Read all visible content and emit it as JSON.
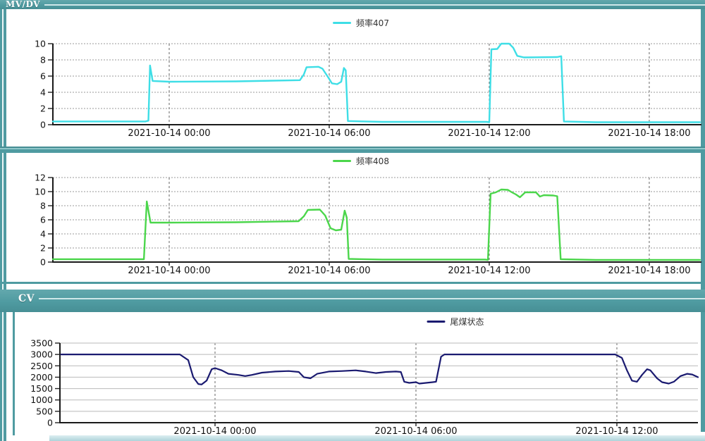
{
  "page": {
    "teal": "#4f9ba1",
    "bottom_strip_color": "#aed3d9"
  },
  "sections": {
    "mvdv": {
      "label": "MV/DV"
    },
    "cv": {
      "label": "CV"
    }
  },
  "chart_data": [
    {
      "type": "line",
      "title": "频率407",
      "color": "#3edee6",
      "line_width": 2.4,
      "legend_position": "top-center",
      "grid": true,
      "ylim": [
        0,
        10
      ],
      "yticks": [
        0,
        2,
        4,
        6,
        8,
        10
      ],
      "x_unit": "hours relative to 2021-10-14 00:00",
      "x_range": [
        -4.4,
        19.9
      ],
      "x_ticks": [
        {
          "h": 0,
          "label": "2021-10-14 00:00"
        },
        {
          "h": 6,
          "label": "2021-10-14 06:00"
        },
        {
          "h": 12,
          "label": "2021-10-14 12:00"
        },
        {
          "h": 18,
          "label": "2021-10-14 18:00"
        }
      ],
      "points": [
        [
          -4.4,
          0.4
        ],
        [
          -0.9,
          0.4
        ],
        [
          -0.78,
          0.5
        ],
        [
          -0.72,
          7.3
        ],
        [
          -0.62,
          5.4
        ],
        [
          0,
          5.3
        ],
        [
          2.5,
          5.35
        ],
        [
          4.9,
          5.5
        ],
        [
          5.05,
          6.2
        ],
        [
          5.15,
          7.1
        ],
        [
          5.6,
          7.15
        ],
        [
          5.75,
          6.9
        ],
        [
          5.95,
          5.9
        ],
        [
          6.1,
          5.1
        ],
        [
          6.3,
          5.0
        ],
        [
          6.45,
          5.3
        ],
        [
          6.55,
          7.0
        ],
        [
          6.62,
          6.7
        ],
        [
          6.7,
          0.45
        ],
        [
          8,
          0.35
        ],
        [
          11.9,
          0.35
        ],
        [
          12.0,
          0.3
        ],
        [
          12.08,
          9.3
        ],
        [
          12.3,
          9.35
        ],
        [
          12.45,
          10.0
        ],
        [
          12.75,
          10.0
        ],
        [
          12.9,
          9.5
        ],
        [
          13.05,
          8.5
        ],
        [
          13.3,
          8.3
        ],
        [
          14.55,
          8.35
        ],
        [
          14.7,
          8.45
        ],
        [
          14.8,
          0.4
        ],
        [
          16,
          0.3
        ],
        [
          19.9,
          0.3
        ]
      ]
    },
    {
      "type": "line",
      "title": "频率408",
      "color": "#4bd64b",
      "line_width": 2.4,
      "legend_position": "top-center",
      "grid": true,
      "ylim": [
        0,
        12
      ],
      "yticks": [
        0,
        2,
        4,
        6,
        8,
        10,
        12
      ],
      "x_unit": "hours relative to 2021-10-14 00:00",
      "x_range": [
        -4.4,
        19.9
      ],
      "x_ticks": [
        {
          "h": 0,
          "label": "2021-10-14 00:00"
        },
        {
          "h": 6,
          "label": "2021-10-14 06:00"
        },
        {
          "h": 12,
          "label": "2021-10-14 12:00"
        },
        {
          "h": 18,
          "label": "2021-10-14 18:00"
        }
      ],
      "points": [
        [
          -4.4,
          0.4
        ],
        [
          -0.95,
          0.4
        ],
        [
          -0.84,
          8.6
        ],
        [
          -0.7,
          5.6
        ],
        [
          0,
          5.6
        ],
        [
          2.5,
          5.65
        ],
        [
          4.85,
          5.8
        ],
        [
          5.05,
          6.5
        ],
        [
          5.2,
          7.4
        ],
        [
          5.65,
          7.45
        ],
        [
          5.85,
          6.6
        ],
        [
          6.05,
          4.8
        ],
        [
          6.25,
          4.5
        ],
        [
          6.45,
          4.6
        ],
        [
          6.58,
          7.3
        ],
        [
          6.66,
          6.3
        ],
        [
          6.73,
          0.45
        ],
        [
          8,
          0.35
        ],
        [
          11.85,
          0.35
        ],
        [
          11.95,
          0.3
        ],
        [
          12.05,
          9.7
        ],
        [
          12.25,
          9.9
        ],
        [
          12.45,
          10.3
        ],
        [
          12.7,
          10.25
        ],
        [
          12.85,
          9.9
        ],
        [
          13.0,
          9.6
        ],
        [
          13.15,
          9.2
        ],
        [
          13.35,
          9.9
        ],
        [
          13.75,
          9.9
        ],
        [
          13.9,
          9.3
        ],
        [
          14.05,
          9.5
        ],
        [
          14.4,
          9.45
        ],
        [
          14.55,
          9.35
        ],
        [
          14.68,
          0.4
        ],
        [
          16,
          0.3
        ],
        [
          19.9,
          0.3
        ]
      ]
    },
    {
      "type": "line",
      "title": "尾煤状态",
      "color": "#1a1a70",
      "line_width": 2.2,
      "legend_position": "top-center-right",
      "grid": true,
      "ylim": [
        0,
        3500
      ],
      "yticks": [
        0,
        500,
        1000,
        1500,
        2000,
        2500,
        3000,
        3500
      ],
      "x_unit": "hours relative to 2021-10-14 00:00",
      "x_range": [
        -4.6,
        14.42
      ],
      "x_ticks": [
        {
          "h": 0,
          "label": "2021-10-14 00:00"
        },
        {
          "h": 6,
          "label": "2021-10-14 06:00"
        },
        {
          "h": 12,
          "label": "2021-10-14 12:00"
        }
      ],
      "points": [
        [
          -4.6,
          3000
        ],
        [
          -1.05,
          3000
        ],
        [
          -0.8,
          2750
        ],
        [
          -0.65,
          2000
        ],
        [
          -0.5,
          1700
        ],
        [
          -0.4,
          1680
        ],
        [
          -0.25,
          1850
        ],
        [
          -0.1,
          2350
        ],
        [
          0.0,
          2400
        ],
        [
          0.2,
          2300
        ],
        [
          0.4,
          2150
        ],
        [
          0.7,
          2100
        ],
        [
          0.9,
          2050
        ],
        [
          1.1,
          2100
        ],
        [
          1.4,
          2200
        ],
        [
          1.8,
          2250
        ],
        [
          2.2,
          2270
        ],
        [
          2.5,
          2230
        ],
        [
          2.65,
          2000
        ],
        [
          2.85,
          1950
        ],
        [
          3.05,
          2150
        ],
        [
          3.4,
          2250
        ],
        [
          3.8,
          2270
        ],
        [
          4.2,
          2300
        ],
        [
          4.5,
          2250
        ],
        [
          4.8,
          2180
        ],
        [
          5.1,
          2230
        ],
        [
          5.4,
          2250
        ],
        [
          5.55,
          2230
        ],
        [
          5.65,
          1800
        ],
        [
          5.8,
          1750
        ],
        [
          6.0,
          1780
        ],
        [
          6.1,
          1720
        ],
        [
          6.3,
          1750
        ],
        [
          6.5,
          1780
        ],
        [
          6.6,
          1800
        ],
        [
          6.75,
          2900
        ],
        [
          6.85,
          3000
        ],
        [
          11.95,
          3000
        ],
        [
          12.15,
          2850
        ],
        [
          12.3,
          2300
        ],
        [
          12.45,
          1850
        ],
        [
          12.6,
          1800
        ],
        [
          12.75,
          2100
        ],
        [
          12.9,
          2350
        ],
        [
          13.0,
          2300
        ],
        [
          13.2,
          1950
        ],
        [
          13.35,
          1780
        ],
        [
          13.55,
          1720
        ],
        [
          13.7,
          1800
        ],
        [
          13.9,
          2050
        ],
        [
          14.1,
          2150
        ],
        [
          14.25,
          2120
        ],
        [
          14.42,
          2000
        ]
      ]
    }
  ]
}
